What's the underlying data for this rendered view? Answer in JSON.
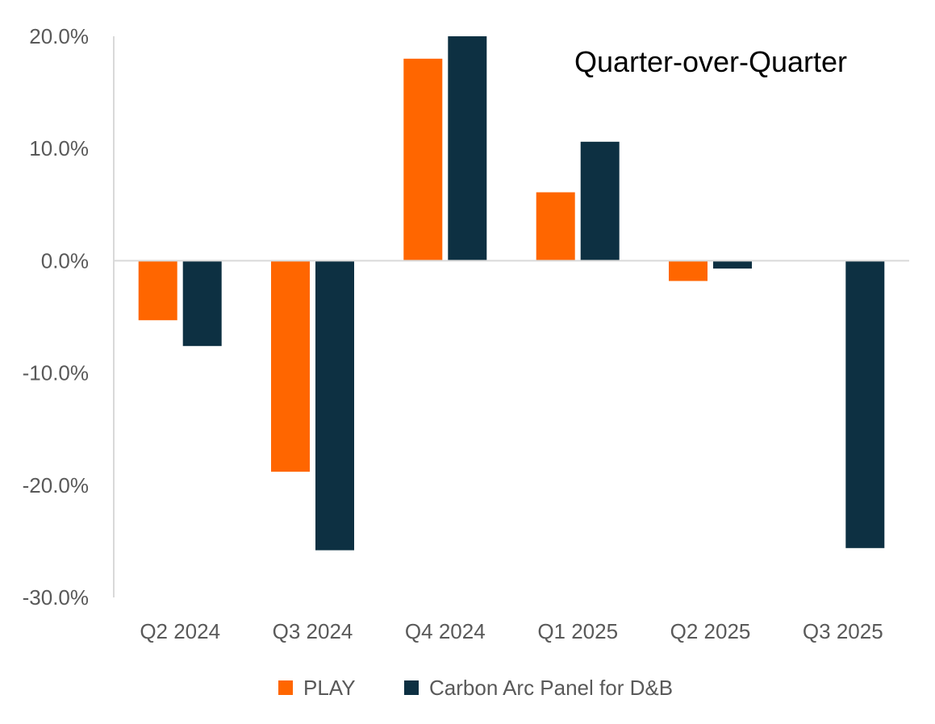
{
  "chart_data": {
    "type": "bar",
    "title": "Quarter-over-Quarter",
    "xlabel": "",
    "ylabel": "",
    "categories": [
      "Q2 2024",
      "Q3 2024",
      "Q4 2024",
      "Q1 2025",
      "Q2 2025",
      "Q3 2025"
    ],
    "series": [
      {
        "name": "PLAY",
        "color": "#ff6600",
        "values": [
          -5.3,
          -18.8,
          18.0,
          6.1,
          -1.8,
          null
        ]
      },
      {
        "name": "Carbon Arc Panel for D&B",
        "color": "#0d3042",
        "values": [
          -7.6,
          -25.8,
          20.0,
          10.6,
          -0.7,
          -25.6
        ]
      }
    ],
    "ylim": [
      -30,
      20
    ],
    "yticks": [
      {
        "value": 20,
        "label": "20.0%"
      },
      {
        "value": 10,
        "label": "10.0%"
      },
      {
        "value": 0,
        "label": "0.0%"
      },
      {
        "value": -10,
        "label": "-10.0%"
      },
      {
        "value": -20,
        "label": "-20.0%"
      },
      {
        "value": -30,
        "label": "-30.0%"
      }
    ],
    "grid": false,
    "legend_position": "bottom-center"
  }
}
